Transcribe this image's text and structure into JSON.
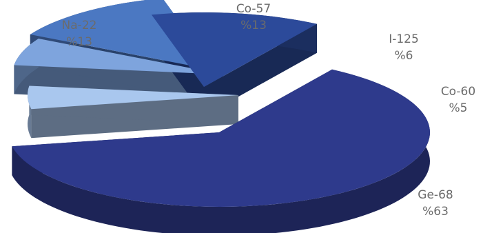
{
  "chart_data": {
    "type": "pie",
    "title": "",
    "style": "3d-exploded",
    "slices": [
      {
        "label": "Ge-68",
        "percent_label": "%63",
        "value": 63,
        "color": "#2e3a8c"
      },
      {
        "label": "Na-22",
        "percent_label": "%13",
        "value": 13,
        "color": "#2c4a9a"
      },
      {
        "label": "Co-57",
        "percent_label": "%13",
        "value": 13,
        "color": "#4b78c2"
      },
      {
        "label": "I-125",
        "percent_label": "%6",
        "value": 6,
        "color": "#7ea4dd"
      },
      {
        "label": "Co-60",
        "percent_label": "%5",
        "value": 5,
        "color": "#a9c7ee"
      }
    ]
  }
}
